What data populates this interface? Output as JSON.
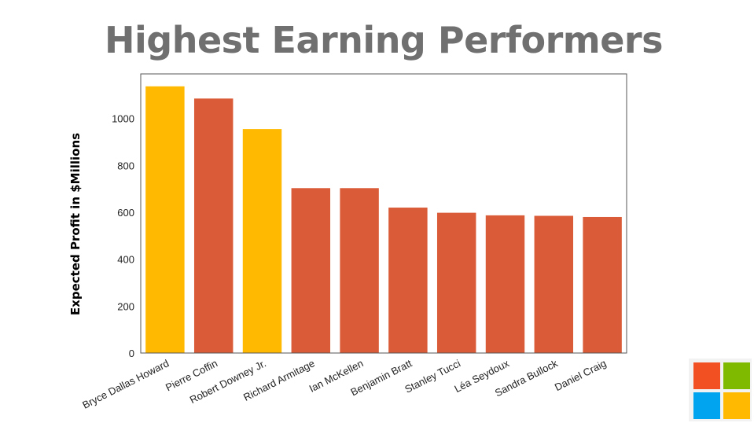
{
  "title": "Highest Earning Performers",
  "chart_data": {
    "type": "bar",
    "title": "Highest Earning Performers",
    "xlabel": "",
    "ylabel": "Expected Profit in $Millions",
    "categories": [
      "Bryce Dallas Howard",
      "Pierre Coffin",
      "Robert Downey Jr.",
      "Richard Armitage",
      "Ian McKellen",
      "Benjamin Bratt",
      "Stanley Tucci",
      "Léa Seydoux",
      "Sandra Bullock",
      "Daniel Craig"
    ],
    "values": [
      1137,
      1085,
      955,
      703,
      703,
      620,
      598,
      587,
      585,
      580
    ],
    "bar_colors": [
      "#FFB900",
      "#D95B37",
      "#FFB900",
      "#D95B37",
      "#D95B37",
      "#D95B37",
      "#D95B37",
      "#D95B37",
      "#D95B37",
      "#D95B37"
    ],
    "ylim": [
      0,
      1190
    ],
    "yticks": [
      0,
      200,
      400,
      600,
      800,
      1000
    ],
    "grid": false,
    "legend": "none"
  },
  "logo": {
    "icon": "windows-logo-icon",
    "colors": [
      "#F25022",
      "#7FBA00",
      "#00A4EF",
      "#FFB900"
    ]
  }
}
